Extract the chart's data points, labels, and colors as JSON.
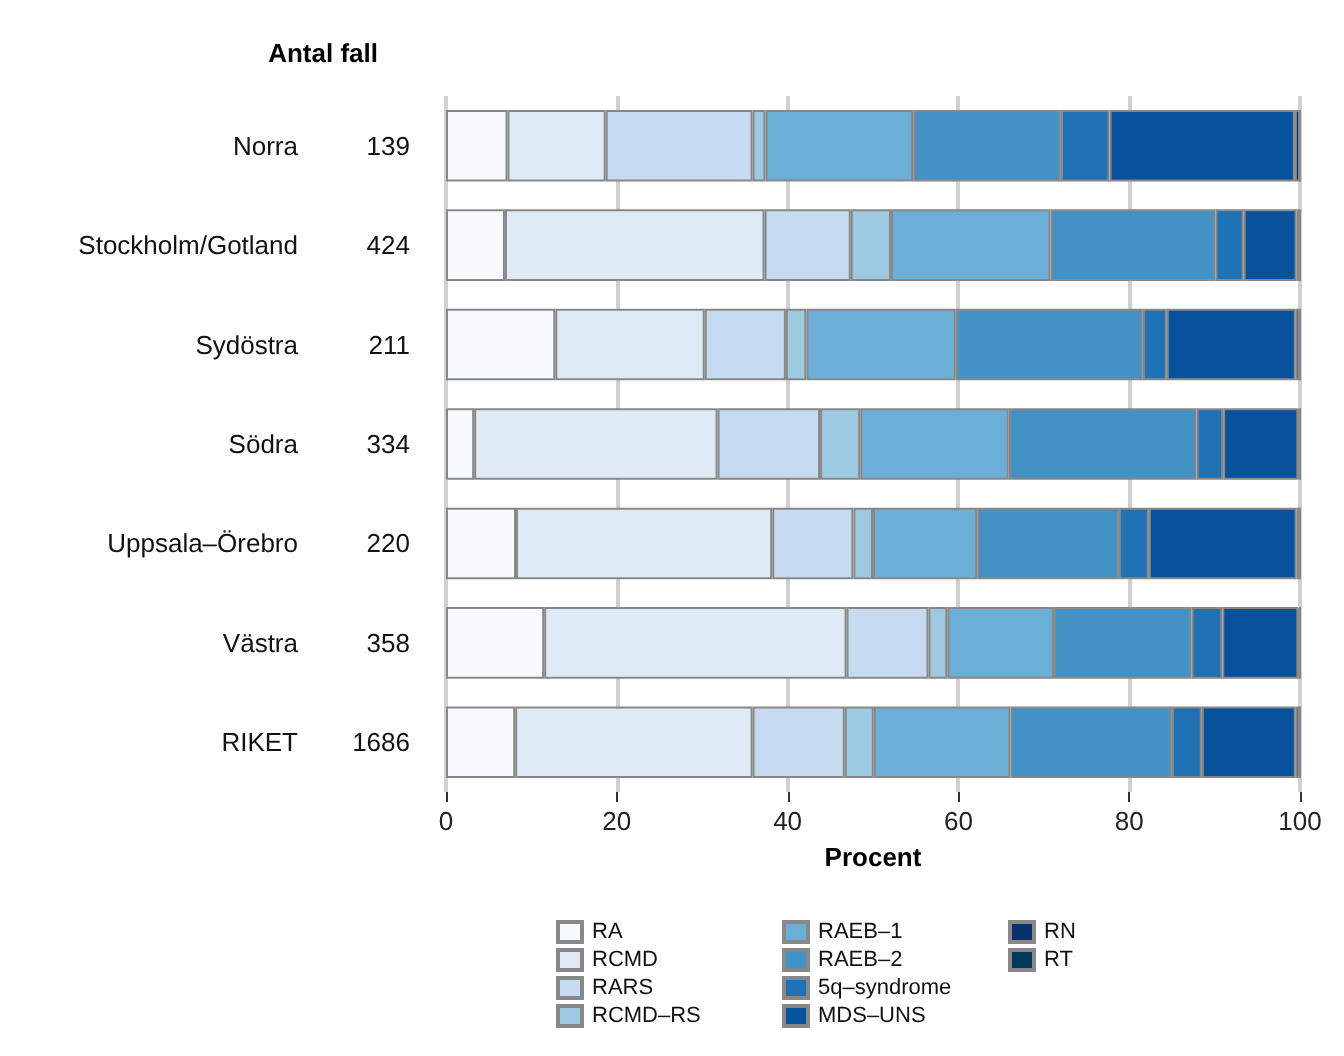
{
  "chart_data": {
    "type": "bar",
    "orientation": "horizontal",
    "stacked": true,
    "xlabel": "Procent",
    "categories": [
      "Norra",
      "Stockholm/Gotland",
      "Sydöstra",
      "Södra",
      "Uppsala–Örebro",
      "Västra",
      "RIKET"
    ],
    "series": [
      {
        "name": "RA",
        "color": "#f7fbff",
        "values": [
          7.2,
          6.9,
          12.8,
          3.3,
          8.2,
          11.5,
          8.1
        ]
      },
      {
        "name": "RCMD",
        "color": "#deebf7",
        "values": [
          11.5,
          30.4,
          17.5,
          28.5,
          30.0,
          35.4,
          27.8
        ]
      },
      {
        "name": "RARS",
        "color": "#c6dbef",
        "values": [
          17.2,
          10.1,
          9.5,
          12.0,
          9.5,
          9.6,
          10.8
        ]
      },
      {
        "name": "RCMD–RS",
        "color": "#9ecae1",
        "values": [
          1.5,
          4.7,
          2.4,
          4.7,
          2.3,
          2.2,
          3.4
        ]
      },
      {
        "name": "RAEB–1",
        "color": "#6baed6",
        "values": [
          17.3,
          18.7,
          17.5,
          17.4,
          12.2,
          12.5,
          16.0
        ]
      },
      {
        "name": "RAEB–2",
        "color": "#4292c6",
        "values": [
          17.3,
          19.3,
          21.9,
          22.0,
          16.6,
          16.1,
          18.9
        ]
      },
      {
        "name": "5q–syndrome",
        "color": "#2171b5",
        "values": [
          5.7,
          3.3,
          2.8,
          3.1,
          3.5,
          3.6,
          3.5
        ]
      },
      {
        "name": "MDS–UNS",
        "color": "#08519c",
        "values": [
          21.7,
          6.2,
          15.1,
          8.8,
          17.3,
          8.9,
          11.0
        ]
      },
      {
        "name": "RN",
        "color": "#08306b",
        "values": [
          0.6,
          0.4,
          0.5,
          0.2,
          0.4,
          0.2,
          0.5
        ]
      },
      {
        "name": "RT",
        "color": "#023858",
        "values": [
          0,
          0,
          0,
          0,
          0,
          0,
          0
        ]
      }
    ],
    "xlim": [
      0,
      100
    ],
    "xticks": [
      0,
      20,
      40,
      60,
      80,
      100
    ],
    "grid": "x",
    "legend": "bottom",
    "annotations": [
      "Antal fall",
      "139",
      "424",
      "211",
      "334",
      "220",
      "358",
      "1686"
    ]
  }
}
